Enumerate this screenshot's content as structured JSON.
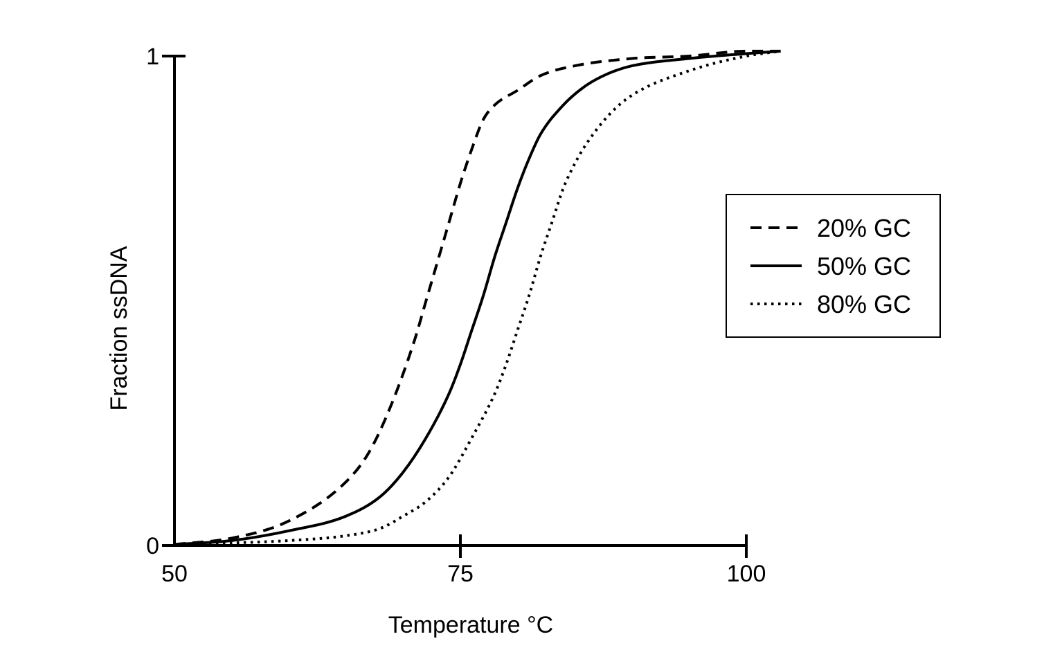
{
  "chart_data": {
    "type": "line",
    "title": "",
    "xlabel": "Temperature °C",
    "ylabel": "Fraction ssDNA",
    "xlim": [
      50,
      103
    ],
    "ylim": [
      0,
      1
    ],
    "xticks": [
      50,
      75,
      100
    ],
    "xtick_labels": [
      "50",
      "75",
      "100"
    ],
    "yticks": [
      0,
      1
    ],
    "ytick_labels": [
      "0",
      "1"
    ],
    "grid": false,
    "legend": {
      "position": "right",
      "boxed": true
    },
    "color": "#000000",
    "series": [
      {
        "name": "20% GC",
        "style": "dashed",
        "x": [
          50,
          55,
          60,
          65,
          67,
          69,
          71,
          72,
          73,
          74,
          75,
          76,
          77,
          78,
          80,
          82,
          85,
          90,
          95,
          100,
          103
        ],
        "y": [
          0.002,
          0.015,
          0.05,
          0.13,
          0.19,
          0.29,
          0.42,
          0.5,
          0.58,
          0.66,
          0.74,
          0.81,
          0.87,
          0.9,
          0.93,
          0.96,
          0.98,
          0.995,
          1.0,
          1.01,
          1.01
        ]
      },
      {
        "name": "50% GC",
        "style": "solid",
        "x": [
          50,
          55,
          60,
          65,
          68,
          70,
          72,
          74,
          75,
          76,
          77,
          78,
          79,
          80,
          81,
          82,
          84,
          86,
          88,
          90,
          95,
          100,
          103
        ],
        "y": [
          0.002,
          0.01,
          0.03,
          0.06,
          0.1,
          0.15,
          0.22,
          0.31,
          0.37,
          0.44,
          0.51,
          0.59,
          0.66,
          0.73,
          0.79,
          0.84,
          0.9,
          0.94,
          0.965,
          0.98,
          0.995,
          1.005,
          1.01
        ]
      },
      {
        "name": "80% GC",
        "style": "dotted",
        "x": [
          50,
          55,
          60,
          65,
          68,
          70,
          72,
          74,
          76,
          78,
          79,
          80,
          81,
          82,
          83,
          84,
          85,
          86,
          88,
          90,
          95,
          100,
          103
        ],
        "y": [
          0.0,
          0.005,
          0.01,
          0.02,
          0.035,
          0.06,
          0.09,
          0.14,
          0.22,
          0.31,
          0.37,
          0.44,
          0.51,
          0.59,
          0.66,
          0.73,
          0.78,
          0.82,
          0.88,
          0.92,
          0.97,
          1.0,
          1.01
        ]
      }
    ]
  }
}
